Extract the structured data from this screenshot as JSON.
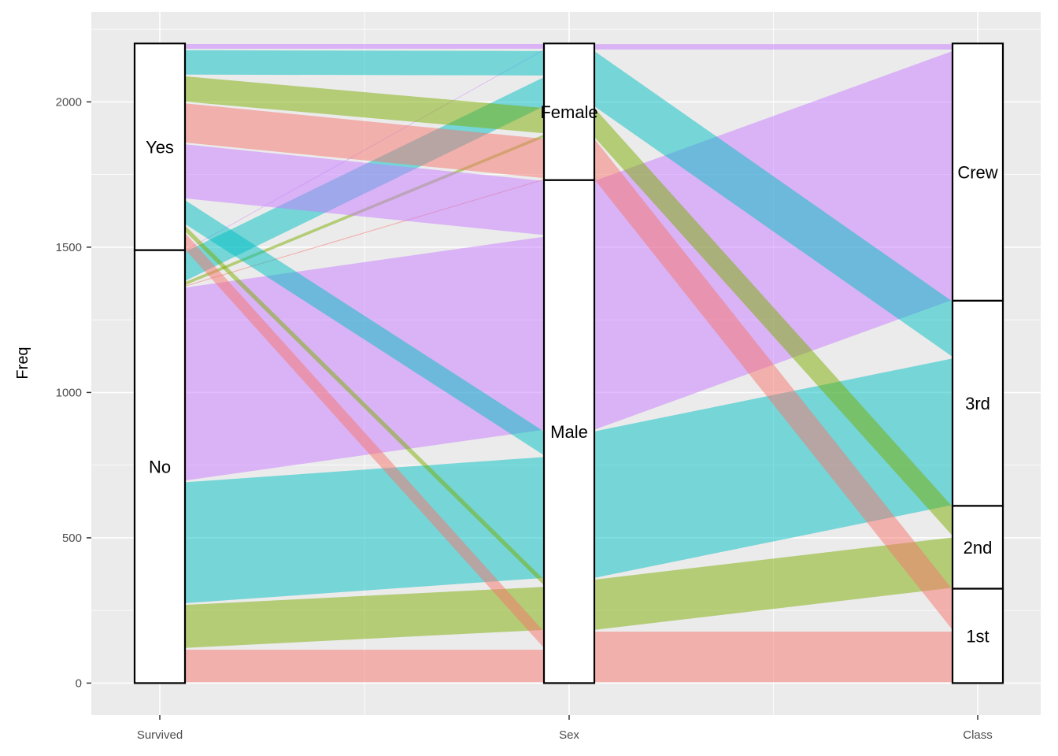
{
  "chart_data": {
    "type": "parallel-sets",
    "title": "",
    "xlabel": "",
    "ylabel": "Freq",
    "ylim": [
      -110,
      2310
    ],
    "yticks": [
      0,
      500,
      1000,
      1500,
      2000
    ],
    "grid": true,
    "legend": "none",
    "axes": [
      "Survived",
      "Sex",
      "Class"
    ],
    "axis_categories": {
      "Survived": [
        "No",
        "Yes"
      ],
      "Sex": [
        "Male",
        "Female"
      ],
      "Class": [
        "1st",
        "2nd",
        "3rd",
        "Crew"
      ]
    },
    "fill_variable": "Class",
    "colors": {
      "1st": "#F8766D",
      "2nd": "#7CAE00",
      "3rd": "#00BFC4",
      "Crew": "#C77CFF"
    },
    "records": [
      {
        "Survived": "No",
        "Sex": "Male",
        "Class": "1st",
        "Freq": 118
      },
      {
        "Survived": "No",
        "Sex": "Male",
        "Class": "2nd",
        "Freq": 154
      },
      {
        "Survived": "No",
        "Sex": "Male",
        "Class": "3rd",
        "Freq": 422
      },
      {
        "Survived": "No",
        "Sex": "Male",
        "Class": "Crew",
        "Freq": 670
      },
      {
        "Survived": "No",
        "Sex": "Female",
        "Class": "1st",
        "Freq": 4
      },
      {
        "Survived": "No",
        "Sex": "Female",
        "Class": "2nd",
        "Freq": 13
      },
      {
        "Survived": "No",
        "Sex": "Female",
        "Class": "3rd",
        "Freq": 106
      },
      {
        "Survived": "No",
        "Sex": "Female",
        "Class": "Crew",
        "Freq": 3
      },
      {
        "Survived": "Yes",
        "Sex": "Male",
        "Class": "1st",
        "Freq": 62
      },
      {
        "Survived": "Yes",
        "Sex": "Male",
        "Class": "2nd",
        "Freq": 25
      },
      {
        "Survived": "Yes",
        "Sex": "Male",
        "Class": "3rd",
        "Freq": 88
      },
      {
        "Survived": "Yes",
        "Sex": "Male",
        "Class": "Crew",
        "Freq": 192
      },
      {
        "Survived": "Yes",
        "Sex": "Female",
        "Class": "1st",
        "Freq": 141
      },
      {
        "Survived": "Yes",
        "Sex": "Female",
        "Class": "2nd",
        "Freq": 93
      },
      {
        "Survived": "Yes",
        "Sex": "Female",
        "Class": "3rd",
        "Freq": 90
      },
      {
        "Survived": "Yes",
        "Sex": "Female",
        "Class": "Crew",
        "Freq": 20
      }
    ]
  }
}
